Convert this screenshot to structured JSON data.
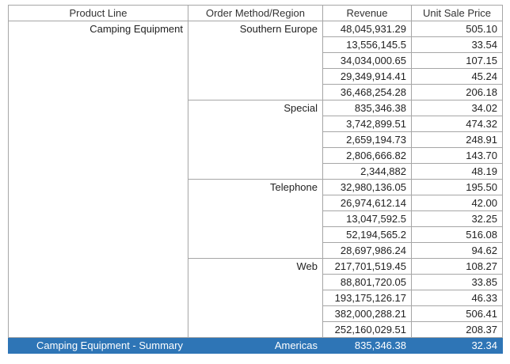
{
  "header": [
    "Product Line",
    "Order Method/Region",
    "Revenue",
    "Unit Sale Price"
  ],
  "product_line": "Camping Equipment",
  "groups": [
    {
      "method": "Southern Europe",
      "rows": [
        [
          "48,045,931.29",
          "505.10"
        ],
        [
          "13,556,145.5",
          "33.54"
        ],
        [
          "34,034,000.65",
          "107.15"
        ],
        [
          "29,349,914.41",
          "45.24"
        ],
        [
          "36,468,254.28",
          "206.18"
        ]
      ]
    },
    {
      "method": "Special",
      "rows": [
        [
          "835,346.38",
          "34.02"
        ],
        [
          "3,742,899.51",
          "474.32"
        ],
        [
          "2,659,194.73",
          "248.91"
        ],
        [
          "2,806,666.82",
          "143.70"
        ],
        [
          "2,344,882",
          "48.19"
        ]
      ]
    },
    {
      "method": "Telephone",
      "rows": [
        [
          "32,980,136.05",
          "195.50"
        ],
        [
          "26,974,612.14",
          "42.00"
        ],
        [
          "13,047,592.5",
          "32.25"
        ],
        [
          "52,194,565.2",
          "516.08"
        ],
        [
          "28,697,986.24",
          "94.62"
        ]
      ]
    },
    {
      "method": "Web",
      "rows": [
        [
          "217,701,519.45",
          "108.27"
        ],
        [
          "88,801,720.05",
          "33.85"
        ],
        [
          "193,175,126.17",
          "46.33"
        ],
        [
          "382,000,288.21",
          "506.41"
        ],
        [
          "252,160,029.51",
          "208.37"
        ]
      ]
    }
  ],
  "summary": [
    "Camping Equipment - Summary",
    "Americas",
    "835,346.38",
    "32.34"
  ]
}
